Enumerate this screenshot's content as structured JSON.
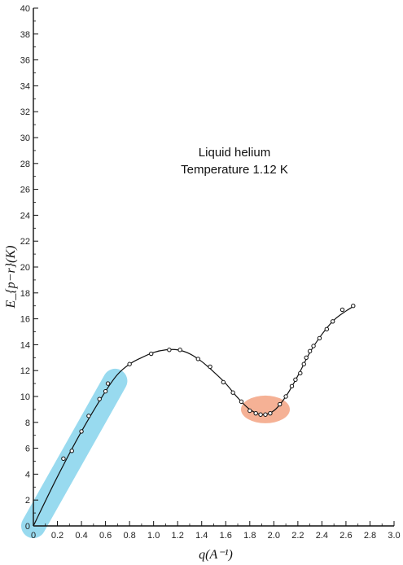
{
  "chart_data": {
    "type": "scatter",
    "xlabel": "q(A⁻¹)",
    "ylabel": "E_{p−r}(K)",
    "xlim": [
      0,
      3.0
    ],
    "ylim": [
      0,
      40
    ],
    "xticks": [
      "0",
      "0.2",
      "0.4",
      "0.6",
      "0.8",
      "1.0",
      "1.2",
      "1.4",
      "1.6",
      "1.8",
      "2.0",
      "2.2",
      "2.4",
      "2.6",
      "2.8",
      "3.0"
    ],
    "yticks": [
      "0",
      "2",
      "4",
      "6",
      "8",
      "10",
      "12",
      "14",
      "16",
      "18",
      "20",
      "22",
      "24",
      "26",
      "28",
      "30",
      "32",
      "34",
      "36",
      "38",
      "40"
    ],
    "annotation": [
      "Liquid helium",
      "Temperature 1.12 K"
    ],
    "highlights": [
      {
        "name": "phonon-region",
        "color": "#8dd6ee",
        "x_from": 0.0,
        "y_from": 0.0,
        "x_to": 0.68,
        "y_to": 11.2
      },
      {
        "name": "roton-minimum",
        "color": "#f4a98a",
        "x_center": 1.93,
        "y_center": 9.0
      }
    ],
    "series": [
      {
        "points": [
          {
            "x": 0.25,
            "y": 5.2
          },
          {
            "x": 0.32,
            "y": 5.8
          },
          {
            "x": 0.4,
            "y": 7.3
          },
          {
            "x": 0.46,
            "y": 8.5
          },
          {
            "x": 0.55,
            "y": 9.8
          },
          {
            "x": 0.6,
            "y": 10.4
          },
          {
            "x": 0.62,
            "y": 11.0
          },
          {
            "x": 0.8,
            "y": 12.5
          },
          {
            "x": 0.98,
            "y": 13.3
          },
          {
            "x": 1.13,
            "y": 13.6
          },
          {
            "x": 1.22,
            "y": 13.6
          },
          {
            "x": 1.37,
            "y": 12.9
          },
          {
            "x": 1.47,
            "y": 12.3
          },
          {
            "x": 1.58,
            "y": 11.1
          },
          {
            "x": 1.66,
            "y": 10.3
          },
          {
            "x": 1.73,
            "y": 9.6
          },
          {
            "x": 1.8,
            "y": 8.9
          },
          {
            "x": 1.85,
            "y": 8.7
          },
          {
            "x": 1.89,
            "y": 8.6
          },
          {
            "x": 1.93,
            "y": 8.6
          },
          {
            "x": 1.97,
            "y": 8.7
          },
          {
            "x": 2.05,
            "y": 9.4
          },
          {
            "x": 2.1,
            "y": 10.0
          },
          {
            "x": 2.15,
            "y": 10.8
          },
          {
            "x": 2.18,
            "y": 11.3
          },
          {
            "x": 2.22,
            "y": 11.8
          },
          {
            "x": 2.25,
            "y": 12.5
          },
          {
            "x": 2.27,
            "y": 13.0
          },
          {
            "x": 2.3,
            "y": 13.5
          },
          {
            "x": 2.33,
            "y": 13.9
          },
          {
            "x": 2.38,
            "y": 14.5
          },
          {
            "x": 2.44,
            "y": 15.2
          },
          {
            "x": 2.49,
            "y": 15.8
          },
          {
            "x": 2.57,
            "y": 16.7
          },
          {
            "x": 2.66,
            "y": 17.0
          }
        ]
      }
    ],
    "fit_curve": [
      {
        "x": 0.0,
        "y": 0.0
      },
      {
        "x": 0.2,
        "y": 3.8
      },
      {
        "x": 0.4,
        "y": 7.3
      },
      {
        "x": 0.6,
        "y": 10.4
      },
      {
        "x": 0.7,
        "y": 11.7
      },
      {
        "x": 0.8,
        "y": 12.5
      },
      {
        "x": 0.9,
        "y": 13.0
      },
      {
        "x": 1.0,
        "y": 13.4
      },
      {
        "x": 1.1,
        "y": 13.6
      },
      {
        "x": 1.2,
        "y": 13.6
      },
      {
        "x": 1.3,
        "y": 13.3
      },
      {
        "x": 1.4,
        "y": 12.7
      },
      {
        "x": 1.5,
        "y": 11.9
      },
      {
        "x": 1.6,
        "y": 11.0
      },
      {
        "x": 1.7,
        "y": 9.9
      },
      {
        "x": 1.8,
        "y": 9.0
      },
      {
        "x": 1.9,
        "y": 8.6
      },
      {
        "x": 2.0,
        "y": 8.9
      },
      {
        "x": 2.1,
        "y": 10.0
      },
      {
        "x": 2.2,
        "y": 11.6
      },
      {
        "x": 2.3,
        "y": 13.4
      },
      {
        "x": 2.4,
        "y": 14.8
      },
      {
        "x": 2.5,
        "y": 15.9
      },
      {
        "x": 2.6,
        "y": 16.6
      },
      {
        "x": 2.67,
        "y": 17.0
      }
    ]
  }
}
